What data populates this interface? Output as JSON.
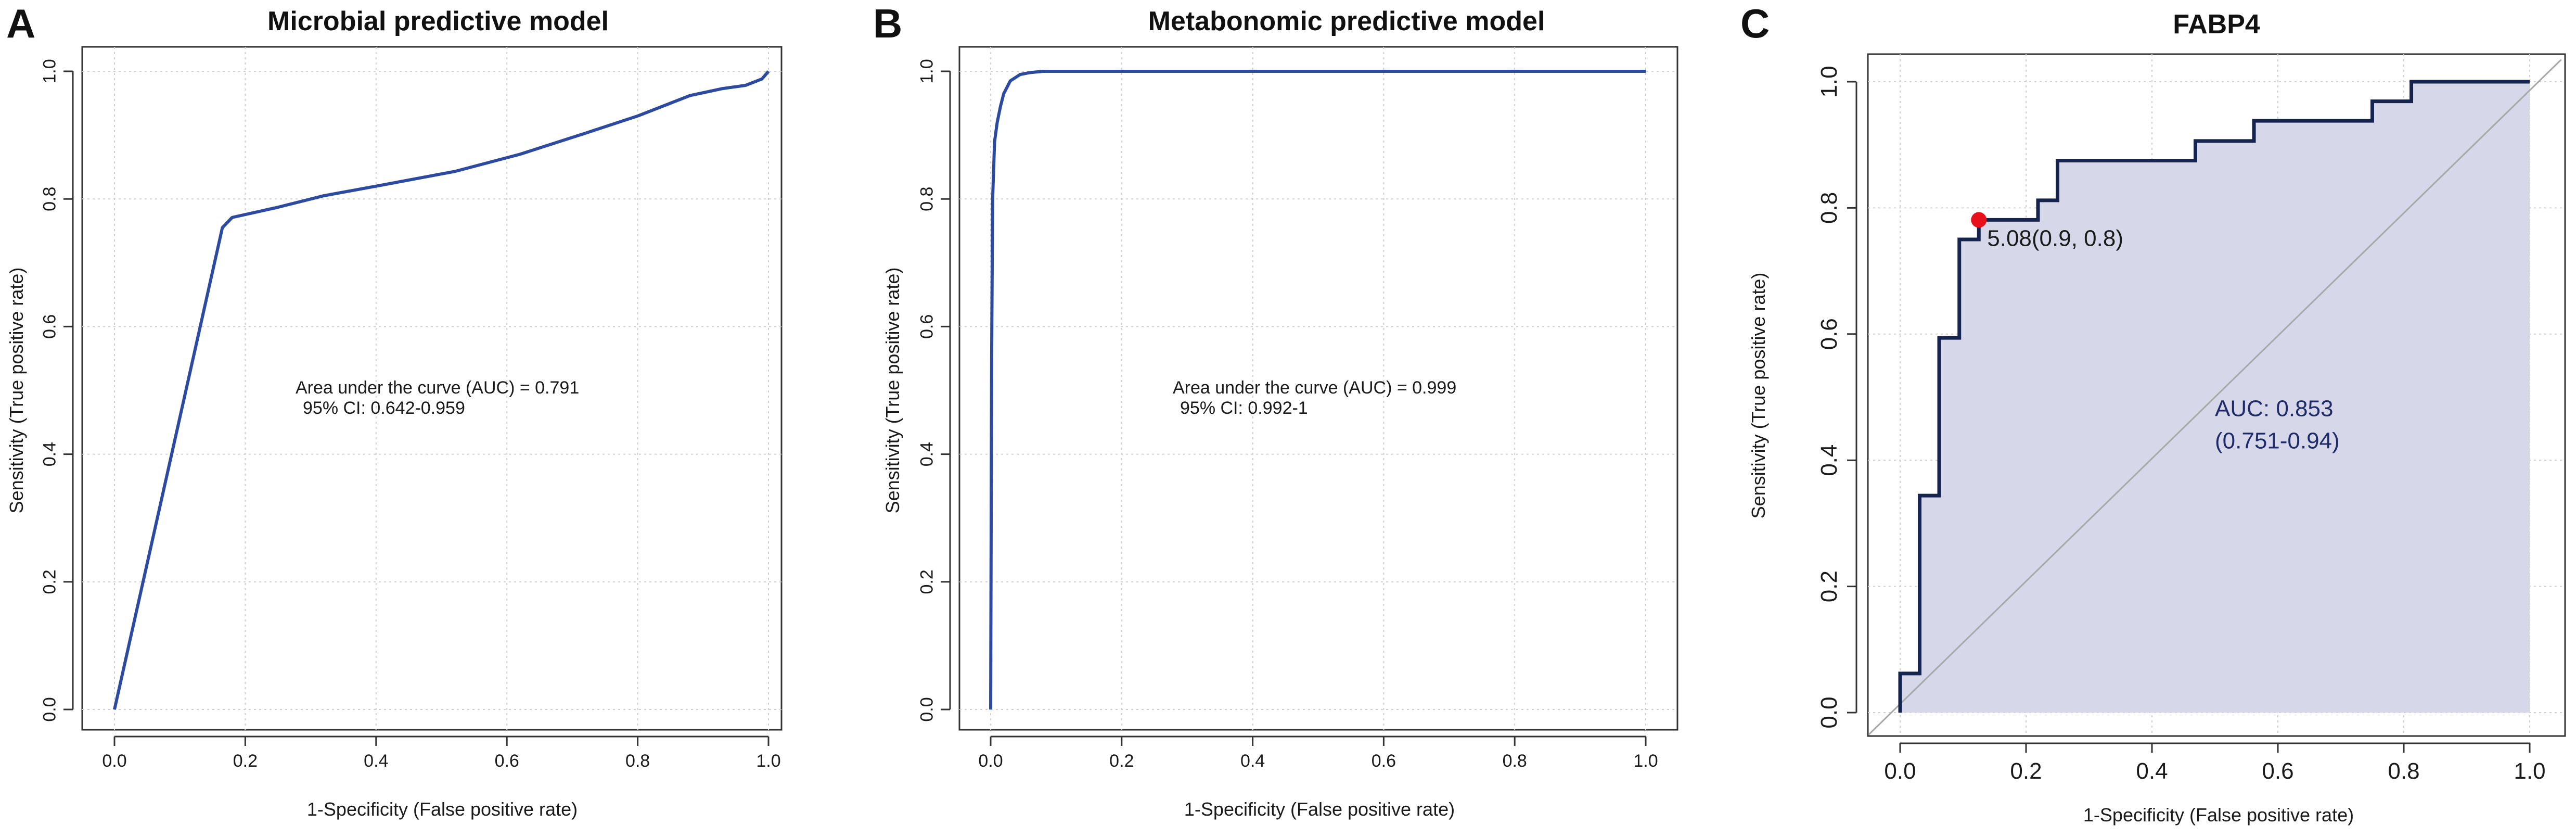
{
  "colors": {
    "roc_line": "#2b4aa0",
    "roc_line_c": "#16254f",
    "fill_c": "#d6d8ea",
    "grid": "#cfcfcf",
    "diagonal": "#a8a8a8",
    "point": "#e8101a",
    "axis": "#333333",
    "text": "#1a1a1a",
    "auc_text_c": "#1f2a6b"
  },
  "chart_data": [
    {
      "panel_letter": "A",
      "type": "line",
      "title": "Microbial predictive model",
      "xlabel": "1-Specificity (False positive rate)",
      "ylabel": "Sensitivity (True positive rate)",
      "xlim": [
        0,
        1
      ],
      "ylim": [
        0,
        1
      ],
      "grid": true,
      "xticks": [
        0,
        0.2,
        0.4,
        0.6,
        0.8,
        1
      ],
      "yticks": [
        0,
        0.2,
        0.4,
        0.6,
        0.8,
        1
      ],
      "xtick_labels": [
        "0.0",
        "0.2",
        "0.4",
        "0.6",
        "0.8",
        "1.0"
      ],
      "ytick_labels": [
        "0.0",
        "0.2",
        "0.4",
        "0.6",
        "0.8",
        "1.0"
      ],
      "annotation": [
        "Area under the curve (AUC) = 0.791",
        "95% CI: 0.642-0.959"
      ],
      "series": [
        {
          "name": "ROC",
          "x": [
            0,
            0.165,
            0.18,
            0.25,
            0.32,
            0.4,
            0.52,
            0.62,
            0.72,
            0.8,
            0.88,
            0.93,
            0.965,
            0.99,
            1.0
          ],
          "y": [
            0,
            0.755,
            0.771,
            0.787,
            0.805,
            0.82,
            0.843,
            0.87,
            0.903,
            0.93,
            0.962,
            0.973,
            0.978,
            0.988,
            1.0
          ]
        }
      ]
    },
    {
      "panel_letter": "B",
      "type": "line",
      "title": "Metabonomic predictive model",
      "xlabel": "1-Specificity (False positive rate)",
      "ylabel": "Sensitivity (True positive rate)",
      "xlim": [
        0,
        1
      ],
      "ylim": [
        0,
        1
      ],
      "grid": true,
      "xticks": [
        0,
        0.2,
        0.4,
        0.6,
        0.8,
        1
      ],
      "yticks": [
        0,
        0.2,
        0.4,
        0.6,
        0.8,
        1
      ],
      "xtick_labels": [
        "0.0",
        "0.2",
        "0.4",
        "0.6",
        "0.8",
        "1.0"
      ],
      "ytick_labels": [
        "0.0",
        "0.2",
        "0.4",
        "0.6",
        "0.8",
        "1.0"
      ],
      "annotation": [
        "Area under the curve (AUC) = 0.999",
        "95% CI: 0.992-1"
      ],
      "series": [
        {
          "name": "ROC",
          "x": [
            0,
            0.0015,
            0.003,
            0.006,
            0.01,
            0.015,
            0.02,
            0.03,
            0.045,
            0.06,
            0.08,
            0.1,
            1.0
          ],
          "y": [
            0,
            0.55,
            0.8,
            0.89,
            0.92,
            0.945,
            0.965,
            0.985,
            0.995,
            0.998,
            1.0,
            1.0,
            1.0
          ]
        }
      ]
    },
    {
      "panel_letter": "C",
      "type": "line",
      "title": "FABP4",
      "xlabel": "1-Specificity (False positive rate)",
      "ylabel": "Sensitivity (True positive rate)",
      "xlim": [
        -0.05,
        1.05
      ],
      "ylim": [
        -0.035,
        1.035
      ],
      "grid": true,
      "xticks": [
        0,
        0.2,
        0.4,
        0.6,
        0.8,
        1
      ],
      "yticks": [
        0,
        0.2,
        0.4,
        0.6,
        0.8,
        1
      ],
      "xtick_labels": [
        "0.0",
        "0.2",
        "0.4",
        "0.6",
        "0.8",
        "1.0"
      ],
      "ytick_labels": [
        "0.0",
        "0.2",
        "0.4",
        "0.6",
        "0.8",
        "1.0"
      ],
      "auc_text": [
        "AUC: 0.853",
        "(0.751-0.94)"
      ],
      "auc_text_pos": [
        0.5,
        0.47
      ],
      "threshold_point": {
        "x": 0.125,
        "y": 0.781,
        "label": "5.08(0.9, 0.8)"
      },
      "series": [
        {
          "name": "ROC",
          "x": [
            0,
            0,
            0.031,
            0.031,
            0.062,
            0.062,
            0.094,
            0.094,
            0.125,
            0.125,
            0.156,
            0.156,
            0.219,
            0.219,
            0.25,
            0.25,
            0.469,
            0.469,
            0.562,
            0.562,
            0.75,
            0.75,
            0.812,
            0.812,
            1.0
          ],
          "y": [
            0,
            0.062,
            0.062,
            0.344,
            0.344,
            0.594,
            0.594,
            0.75,
            0.75,
            0.781,
            0.781,
            0.781,
            0.781,
            0.812,
            0.812,
            0.875,
            0.875,
            0.906,
            0.906,
            0.938,
            0.938,
            0.969,
            0.969,
            1.0,
            1.0
          ]
        }
      ]
    }
  ]
}
